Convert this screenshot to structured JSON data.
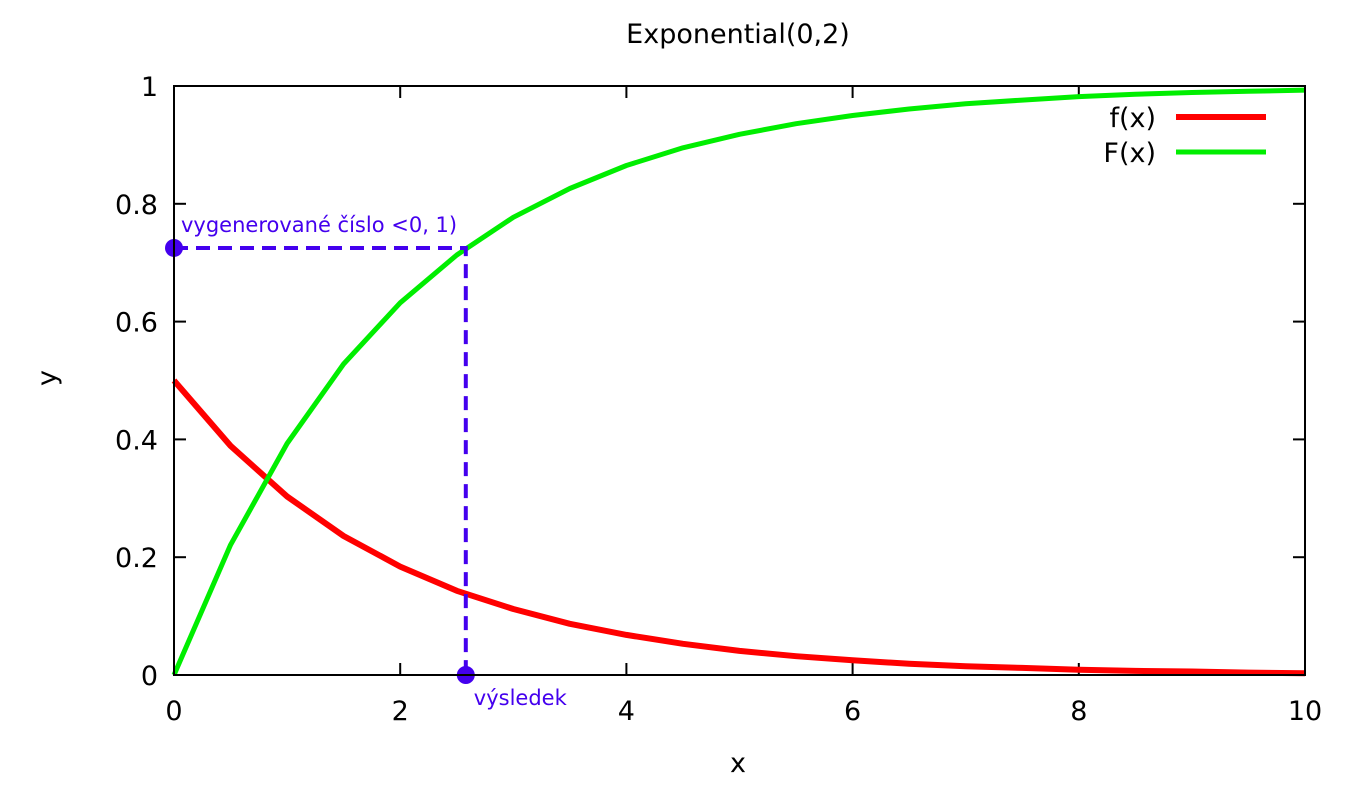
{
  "chart_data": {
    "type": "line",
    "title": "Exponential(0,2)",
    "xlabel": "x",
    "ylabel": "y",
    "xlim": [
      0,
      10
    ],
    "ylim": [
      0,
      1
    ],
    "xticks": [
      0,
      2,
      4,
      6,
      8,
      10
    ],
    "xtick_labels": [
      "0",
      "2",
      "4",
      "6",
      "8",
      "10"
    ],
    "yticks": [
      0,
      0.2,
      0.4,
      0.6,
      0.8,
      1
    ],
    "ytick_labels": [
      "0",
      "0.2",
      "0.4",
      "0.6",
      "0.8",
      "1"
    ],
    "grid": false,
    "legend_position": "top-right",
    "series": [
      {
        "name": "f(x)",
        "color": "#ff0000",
        "x": [
          0,
          0.5,
          1,
          1.5,
          2,
          2.5,
          3,
          3.5,
          4,
          4.5,
          5,
          5.5,
          6,
          6.5,
          7,
          7.5,
          8,
          8.5,
          9,
          9.5,
          10
        ],
        "y": [
          0.5,
          0.389,
          0.303,
          0.236,
          0.184,
          0.143,
          0.112,
          0.087,
          0.068,
          0.053,
          0.041,
          0.032,
          0.025,
          0.019,
          0.015,
          0.012,
          0.009,
          0.007,
          0.006,
          0.004,
          0.003
        ]
      },
      {
        "name": "F(x)",
        "color": "#00ee00",
        "x": [
          0,
          0.5,
          1,
          1.5,
          2,
          2.5,
          3,
          3.5,
          4,
          4.5,
          5,
          5.5,
          6,
          6.5,
          7,
          7.5,
          8,
          8.5,
          9,
          9.5,
          10
        ],
        "y": [
          0,
          0.221,
          0.393,
          0.528,
          0.632,
          0.713,
          0.777,
          0.826,
          0.865,
          0.895,
          0.918,
          0.936,
          0.95,
          0.961,
          0.97,
          0.976,
          0.982,
          0.986,
          0.989,
          0.991,
          0.993
        ]
      }
    ],
    "annotations": {
      "color": "#4400ee",
      "generated_value": 0.725,
      "result_value": 2.58,
      "generated_label": "vygenerované číslo <0, 1)",
      "result_label": "výsledek"
    }
  }
}
